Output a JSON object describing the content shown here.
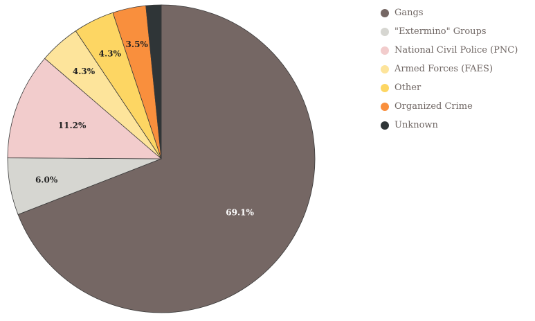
{
  "chart_data": {
    "type": "pie",
    "title": "",
    "start_angle_deg": 0,
    "direction": "clockwise",
    "legend_position": "top-right",
    "slices": [
      {
        "label": "Gangs",
        "value": 69.1,
        "display": "69.1%",
        "color": "#756764",
        "label_color": "#ffffff"
      },
      {
        "label": "\"Extermino\" Groups",
        "value": 6.0,
        "display": "6.0%",
        "color": "#d6d6d1",
        "label_color": "#222222"
      },
      {
        "label": "National Civil Police (PNC)",
        "value": 11.2,
        "display": "11.2%",
        "color": "#f2cccc",
        "label_color": "#222222"
      },
      {
        "label": "Armed Forces (FAES)",
        "value": 4.3,
        "display": "4.3%",
        "color": "#fde49b",
        "label_color": "#222222"
      },
      {
        "label": "Other",
        "value": 4.3,
        "display": "4.3%",
        "color": "#fdd663",
        "label_color": "#222222"
      },
      {
        "label": "Organized Crime",
        "value": 3.5,
        "display": "3.5%",
        "color": "#f98f3d",
        "label_color": "#222222"
      },
      {
        "label": "Unknown",
        "value": 1.6,
        "display": "",
        "color": "#2f3537",
        "label_color": "#ffffff"
      }
    ]
  }
}
